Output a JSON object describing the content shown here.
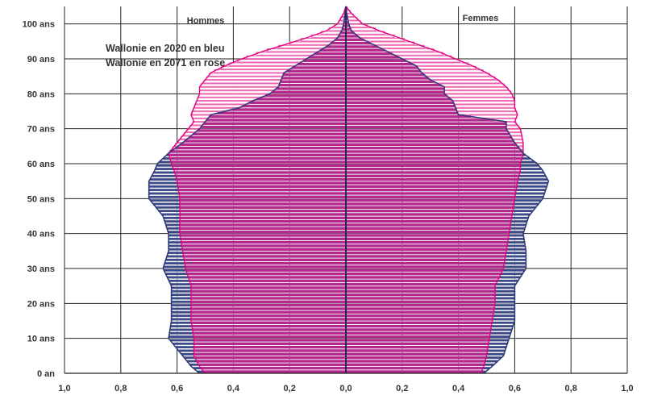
{
  "chart_data": {
    "type": "bar",
    "subtype": "population-pyramid",
    "title": "",
    "sides": {
      "left": "Hommes",
      "right": "Femmes"
    },
    "legend": {
      "placement": "top-left",
      "items": [
        {
          "label": "Wallonie en 2020 en bleu",
          "color": "#3d4a8a"
        },
        {
          "label": "Wallonie en 2071 en rose",
          "color": "#e6007e"
        }
      ]
    },
    "xlim": [
      -1.0,
      1.0
    ],
    "x_ticks": [
      "1,0",
      "0,8",
      "0,6",
      "0,4",
      "0,2",
      "0,0",
      "0,2",
      "0,4",
      "0,6",
      "0,8",
      "1,0"
    ],
    "ylim": [
      0,
      105
    ],
    "y_ticks": [
      "0 an",
      "10 ans",
      "20 ans",
      "30 ans",
      "40 ans",
      "50 ans",
      "60 ans",
      "70 ans",
      "80 ans",
      "90 ans",
      "100 ans"
    ],
    "grid": true,
    "age_points": [
      0,
      2,
      5,
      10,
      15,
      20,
      25,
      30,
      35,
      40,
      45,
      50,
      55,
      58,
      60,
      63,
      66,
      70,
      72,
      74,
      76,
      78,
      80,
      82,
      84,
      86,
      88,
      90,
      92,
      94,
      96,
      98,
      100,
      103,
      105
    ],
    "series": [
      {
        "name": "Wallonie en 2020 en bleu",
        "color": "#3d4a8a",
        "hommes": [
          0.52,
          0.55,
          0.58,
          0.63,
          0.62,
          0.62,
          0.62,
          0.65,
          0.63,
          0.63,
          0.65,
          0.7,
          0.7,
          0.68,
          0.67,
          0.63,
          0.58,
          0.52,
          0.5,
          0.48,
          0.38,
          0.33,
          0.27,
          0.24,
          0.23,
          0.22,
          0.18,
          0.14,
          0.1,
          0.06,
          0.03,
          0.015,
          0.008,
          0.003,
          0.0
        ],
        "femmes": [
          0.49,
          0.52,
          0.56,
          0.58,
          0.6,
          0.6,
          0.6,
          0.64,
          0.64,
          0.63,
          0.65,
          0.7,
          0.72,
          0.7,
          0.68,
          0.63,
          0.6,
          0.57,
          0.57,
          0.4,
          0.39,
          0.38,
          0.35,
          0.35,
          0.3,
          0.27,
          0.25,
          0.2,
          0.15,
          0.1,
          0.05,
          0.02,
          0.01,
          0.003,
          0.0
        ]
      },
      {
        "name": "Wallonie en 2071 en rose",
        "color": "#e6007e",
        "hommes": [
          0.5,
          0.52,
          0.54,
          0.54,
          0.55,
          0.55,
          0.55,
          0.57,
          0.58,
          0.59,
          0.59,
          0.59,
          0.6,
          0.61,
          0.62,
          0.63,
          0.6,
          0.56,
          0.54,
          0.55,
          0.54,
          0.53,
          0.52,
          0.52,
          0.5,
          0.48,
          0.43,
          0.37,
          0.3,
          0.22,
          0.14,
          0.07,
          0.03,
          0.008,
          0.0
        ],
        "femmes": [
          0.48,
          0.49,
          0.5,
          0.51,
          0.52,
          0.53,
          0.53,
          0.56,
          0.57,
          0.58,
          0.59,
          0.6,
          0.61,
          0.62,
          0.62,
          0.63,
          0.63,
          0.62,
          0.6,
          0.61,
          0.6,
          0.6,
          0.59,
          0.57,
          0.54,
          0.5,
          0.45,
          0.39,
          0.33,
          0.26,
          0.19,
          0.12,
          0.06,
          0.02,
          0.0
        ]
      }
    ]
  }
}
